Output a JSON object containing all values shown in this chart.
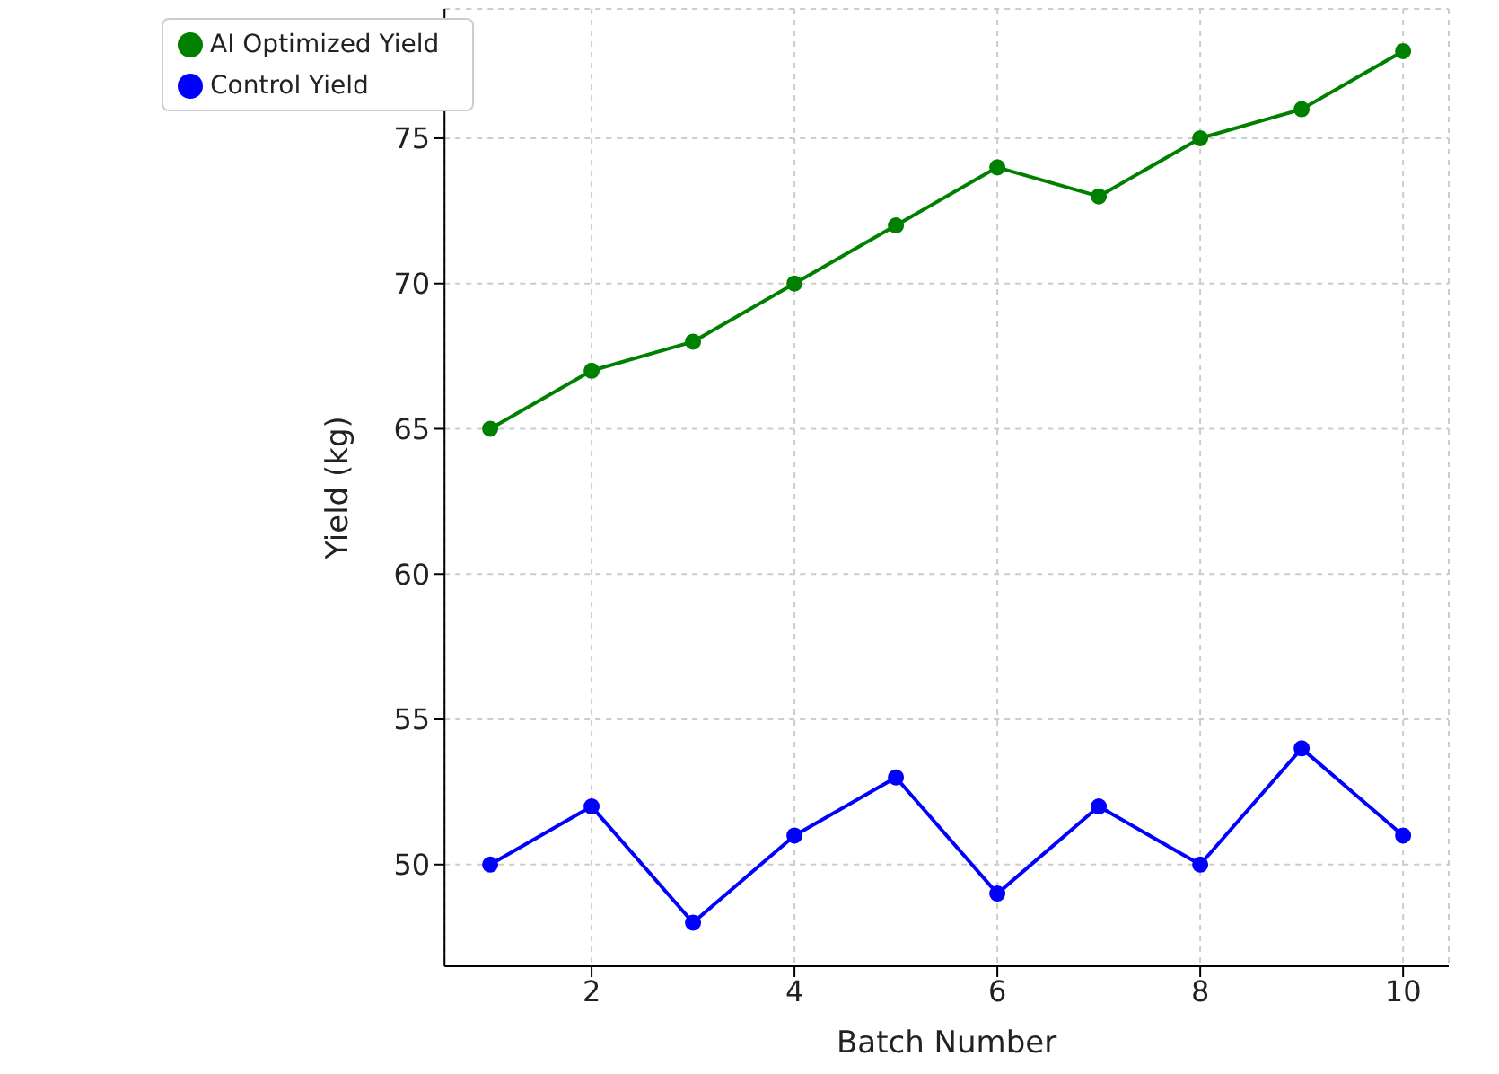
{
  "chart_data": {
    "type": "line",
    "xlabel": "Batch Number",
    "ylabel": "Yield (kg)",
    "x": [
      1,
      2,
      3,
      4,
      5,
      6,
      7,
      8,
      9,
      10
    ],
    "series": [
      {
        "name": "Control Yield",
        "color": "#0000ff",
        "values": [
          50,
          52,
          48,
          51,
          53,
          49,
          52,
          50,
          54,
          51
        ]
      },
      {
        "name": "AI Optimized Yield",
        "color": "#008000",
        "values": [
          65,
          67,
          68,
          70,
          72,
          74,
          73,
          75,
          76,
          78
        ]
      }
    ],
    "xlim": [
      0.55,
      10.45
    ],
    "xticks": [
      2,
      4,
      6,
      8,
      10
    ],
    "ylim": [
      46.5,
      79.45
    ],
    "yticks": [
      50,
      55,
      60,
      65,
      70,
      75
    ],
    "grid": true,
    "legend": "top left",
    "marker": "circle",
    "line_style": "solid"
  }
}
